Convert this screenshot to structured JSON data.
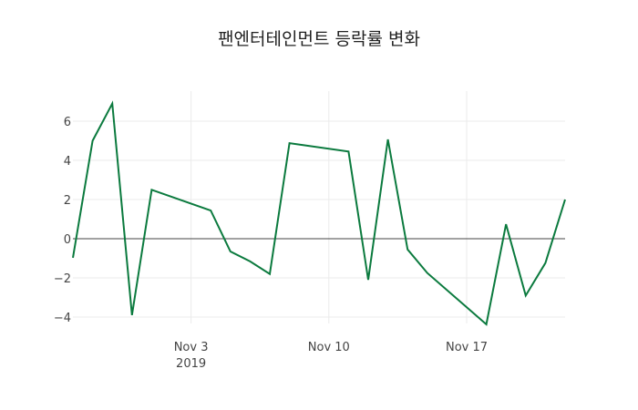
{
  "title": "팬엔터테인먼트 등락률 변화",
  "colors": {
    "line": "#0b7a3e",
    "grid": "#ebebeb",
    "zero": "#444444"
  },
  "chart_data": {
    "type": "line",
    "title": "팬엔터테인먼트 등락률 변화",
    "xlabel": "",
    "ylabel": "",
    "x": [
      "2019-10-28",
      "2019-10-29",
      "2019-10-30",
      "2019-10-31",
      "2019-11-01",
      "2019-11-04",
      "2019-11-05",
      "2019-11-06",
      "2019-11-07",
      "2019-11-08",
      "2019-11-11",
      "2019-11-12",
      "2019-11-13",
      "2019-11-14",
      "2019-11-15",
      "2019-11-18",
      "2019-11-19",
      "2019-11-20",
      "2019-11-21",
      "2019-11-22"
    ],
    "series": [
      {
        "name": "등락률",
        "values": [
          -0.97,
          5.0,
          6.9,
          -3.9,
          2.5,
          1.44,
          -0.65,
          -1.16,
          -1.8,
          4.88,
          4.45,
          -2.1,
          5.07,
          -0.55,
          -1.75,
          -4.37,
          0.74,
          -2.9,
          -1.24,
          2.0
        ]
      }
    ],
    "x_ticks": [
      {
        "date": "2019-11-03",
        "label": "Nov 3",
        "sublabel": "2019"
      },
      {
        "date": "2019-11-10",
        "label": "Nov 10",
        "sublabel": ""
      },
      {
        "date": "2019-11-17",
        "label": "Nov 17",
        "sublabel": ""
      }
    ],
    "y_ticks": [
      -4,
      -2,
      0,
      2,
      4,
      6
    ],
    "y_tick_labels": [
      "−4",
      "−2",
      "0",
      "2",
      "4",
      "6"
    ],
    "ylim": [
      -4.8,
      7.6
    ],
    "xlim": [
      "2019-10-28",
      "2019-11-22"
    ],
    "grid": true,
    "legend": false
  }
}
